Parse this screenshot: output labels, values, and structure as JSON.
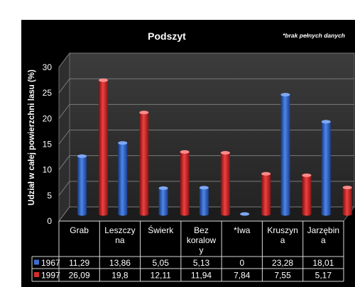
{
  "chart_data": {
    "type": "bar",
    "title": "Podszyt",
    "note": "*brak pełnych danych",
    "ylabel": "Udział  w  całej  powierzchni  lasu  (%)",
    "xlabel": "",
    "ylim": [
      0,
      30
    ],
    "yticks": [
      0,
      5,
      10,
      15,
      20,
      25,
      30
    ],
    "categories": [
      [
        "Grab"
      ],
      [
        "Leszczy",
        "na"
      ],
      [
        "Świerk"
      ],
      [
        "Bez",
        "koralow",
        "y"
      ],
      [
        "*Iwa"
      ],
      [
        "Kruszyn",
        "a"
      ],
      [
        "Jarzębin",
        "a"
      ]
    ],
    "series": [
      {
        "name": "1967",
        "color": "#3b6fd0",
        "values": [
          11.29,
          13.86,
          5.05,
          5.13,
          0,
          23.28,
          18.01
        ],
        "labels": [
          "11,29",
          "13,86",
          "5,05",
          "5,13",
          "0",
          "23,28",
          "18,01"
        ]
      },
      {
        "name": "1997",
        "color": "#d92a2a",
        "values": [
          26.09,
          19.8,
          12.11,
          11.94,
          7.84,
          7.55,
          5.17
        ],
        "labels": [
          "26,09",
          "19,8",
          "12,11",
          "11,94",
          "7,84",
          "7,55",
          "5,17"
        ]
      }
    ],
    "legend": "data-table",
    "grid": true
  }
}
